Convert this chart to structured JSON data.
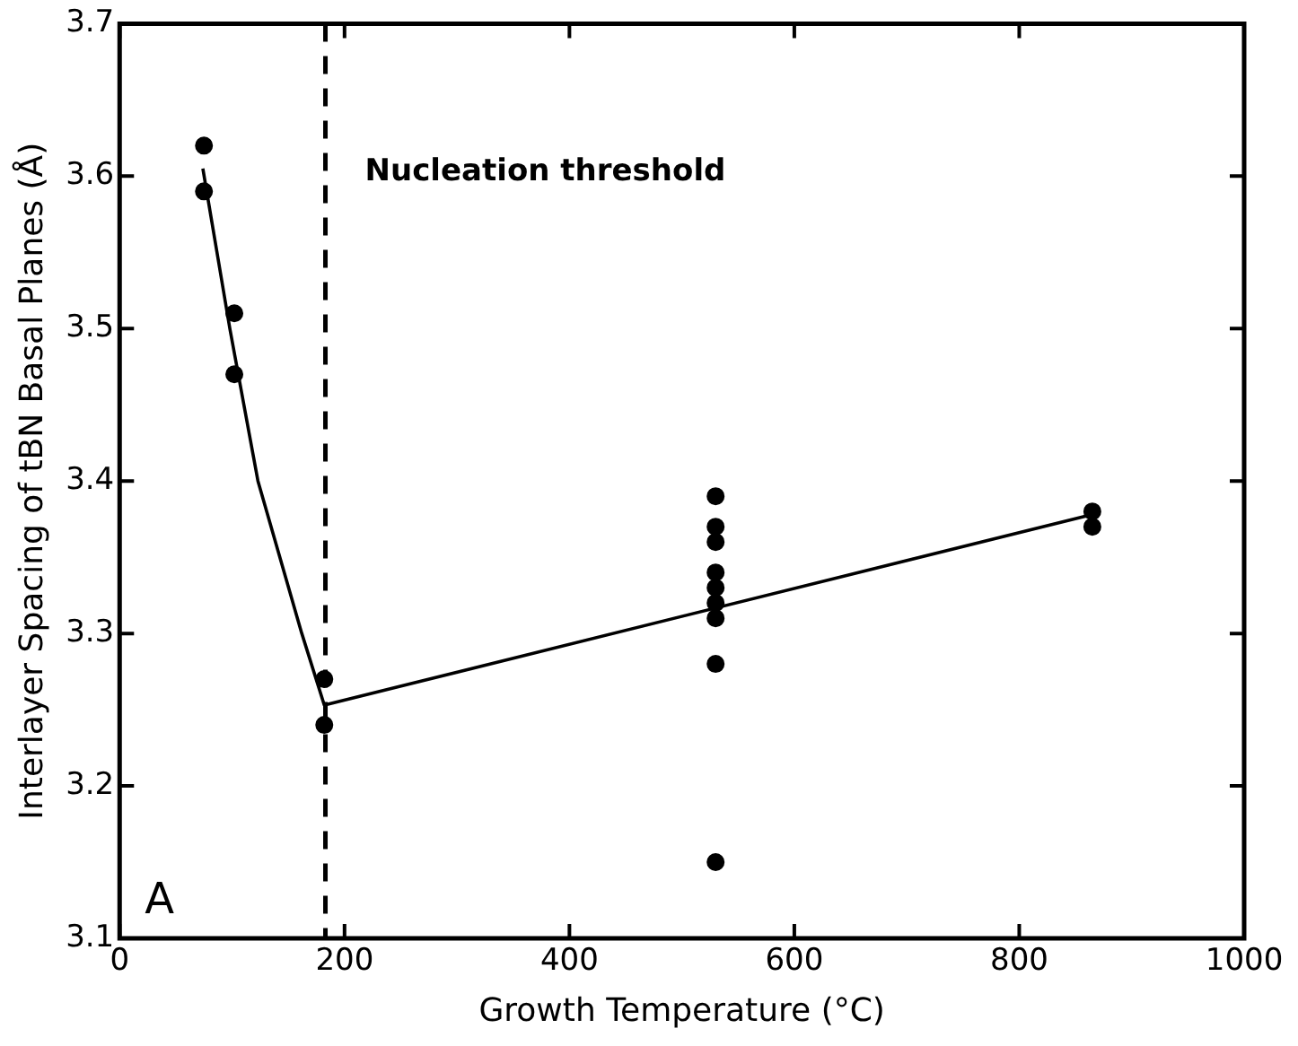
{
  "chart_data": {
    "type": "scatter",
    "xlabel": "Growth Temperature (°C)",
    "ylabel": "Interlayer Spacing of tBN Basal Planes (Å)",
    "xlim": [
      0,
      1000
    ],
    "xticks": [
      0,
      200,
      400,
      600,
      800,
      1000
    ],
    "ylim": [
      3.1,
      3.7
    ],
    "yticks": [
      3.1,
      3.2,
      3.3,
      3.4,
      3.5,
      3.6,
      3.7
    ],
    "grid": false,
    "legend": false,
    "marker": "circle",
    "series": [
      {
        "color": "#000000",
        "x": [
          75,
          75,
          102,
          102,
          182,
          182,
          530,
          530,
          530,
          530,
          530,
          530,
          530,
          530,
          530,
          865,
          865
        ],
        "values": [
          3.62,
          3.59,
          3.51,
          3.47,
          3.27,
          3.24,
          3.39,
          3.37,
          3.36,
          3.34,
          3.33,
          3.32,
          3.31,
          3.28,
          3.15,
          3.38,
          3.37
        ]
      },
      {
        "type": "line",
        "color": "#000000",
        "marker": "none",
        "line_style": "solid",
        "x": [
          74,
          98,
          123,
          162,
          182,
          865
        ],
        "values": [
          3.605,
          3.5,
          3.4,
          3.3,
          3.253,
          3.378
        ]
      }
    ],
    "ref_lines": [
      {
        "axis": "x",
        "value": 183,
        "label": "Nucleation threshold",
        "line_style": "dashed",
        "color": "#000000"
      }
    ],
    "annotations": [
      "A"
    ]
  }
}
